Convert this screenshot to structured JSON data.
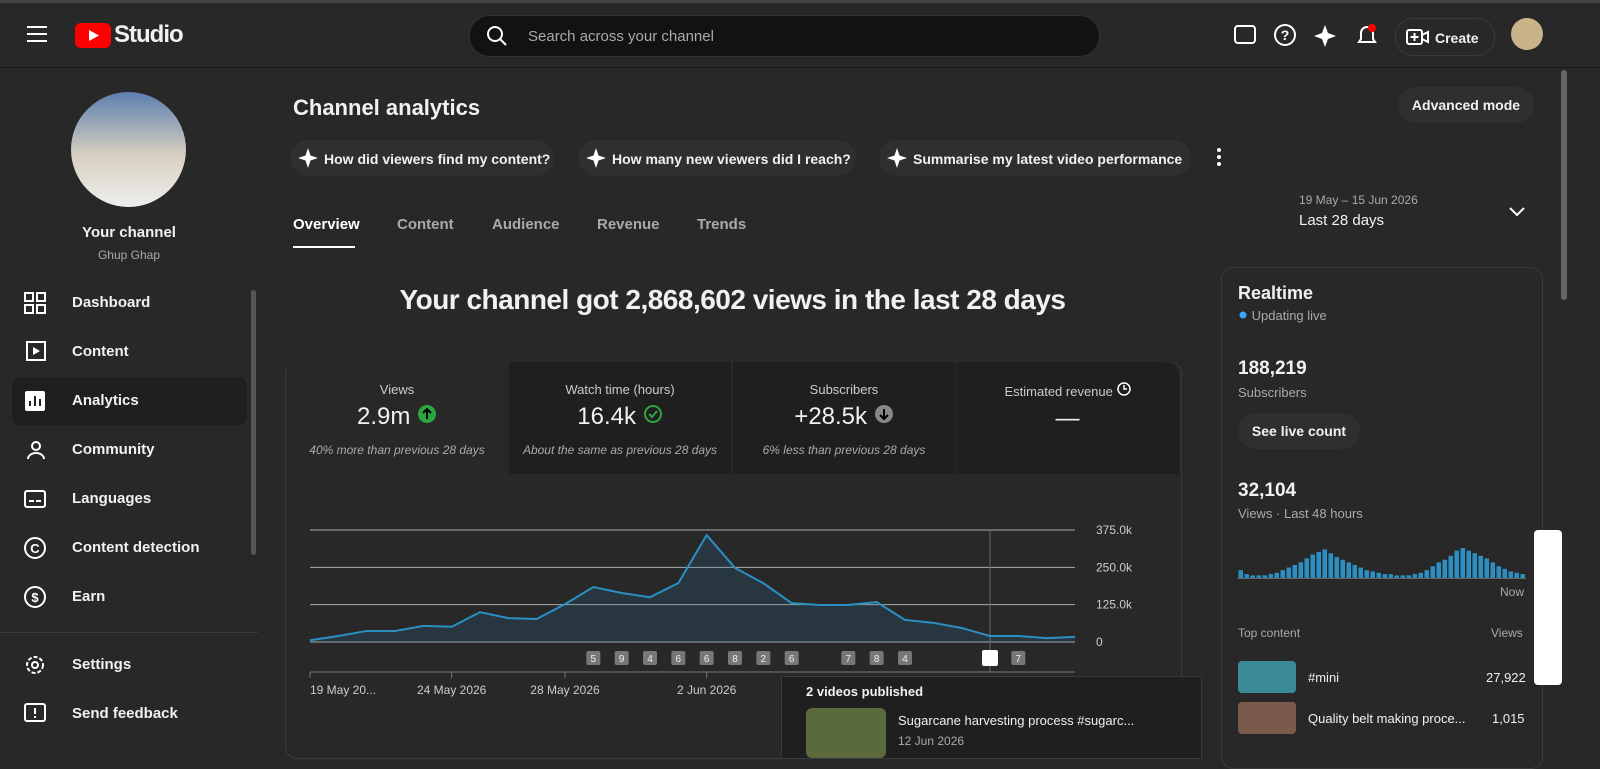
{
  "header": {
    "logo": "Studio",
    "search_placeholder": "Search across your channel",
    "create": "Create"
  },
  "sidebar": {
    "channel_title": "Your channel",
    "channel_name": "Ghup Ghap",
    "nav": [
      "Dashboard",
      "Content",
      "Analytics",
      "Community",
      "Languages",
      "Content detection",
      "Earn"
    ],
    "footer": [
      "Settings",
      "Send feedback"
    ]
  },
  "main": {
    "title": "Channel analytics",
    "advanced": "Advanced mode",
    "suggestions": [
      "How did viewers find my content?",
      "How many new viewers did I reach?",
      "Summarise my latest video performance"
    ],
    "tabs": [
      "Overview",
      "Content",
      "Audience",
      "Revenue",
      "Trends"
    ],
    "date_range": {
      "dates": "19 May – 15 Jun 2026",
      "label": "Last 28 days"
    },
    "headline": "Your channel got 2,868,602 views in the last 28 days",
    "metrics": [
      {
        "label": "Views",
        "value": "2.9m",
        "note": "40% more than previous 28 days"
      },
      {
        "label": "Watch time (hours)",
        "value": "16.4k",
        "note": "About the same as previous 28 days"
      },
      {
        "label": "Subscribers",
        "value": "+28.5k",
        "note": "6% less than previous 28 days"
      },
      {
        "label": "Estimated revenue",
        "value": "—"
      }
    ],
    "published": {
      "title": "2 videos published",
      "video_title": "Sugarcane harvesting process #sugarc...",
      "video_date": "12 Jun 2026"
    }
  },
  "chart_data": {
    "type": "line",
    "categories": [
      "19 May 20...",
      null,
      null,
      null,
      null,
      "24 May 2026",
      null,
      null,
      null,
      "28 May 2026",
      null,
      null,
      null,
      null,
      "2 Jun 2026",
      null,
      null,
      null,
      null,
      null,
      null,
      null,
      null,
      null,
      null,
      null,
      null,
      null
    ],
    "series": [
      {
        "name": "Views",
        "color": "#2b8fc4",
        "values": [
          6000,
          20000,
          37000,
          37000,
          54000,
          51000,
          100000,
          80000,
          77000,
          127000,
          184000,
          164000,
          150000,
          197000,
          358000,
          248000,
          197000,
          130000,
          124000,
          124000,
          134000,
          74000,
          64000,
          47000,
          20000,
          20000,
          13000,
          17000
        ]
      }
    ],
    "ylim": [
      0,
      375000
    ],
    "yticks": [
      {
        "value": 0,
        "label": "0"
      },
      {
        "value": 125000,
        "label": "125.0k"
      },
      {
        "value": 250000,
        "label": "250.0k"
      },
      {
        "value": 375000,
        "label": "375.0k"
      }
    ],
    "grid": true,
    "markers": [
      "5",
      "9",
      "4",
      "6",
      "6",
      "8",
      "2",
      "6",
      "7",
      "8",
      "4",
      "7"
    ]
  },
  "realtime": {
    "title": "Realtime",
    "status": "Updating live",
    "subscribers": "188,219",
    "subscribers_label": "Subscribers",
    "button": "See live count",
    "views": "32,104",
    "views_label": "Views · Last 48 hours",
    "now": "Now",
    "bars": [
      {
        "type": "bar",
        "color": "#2b8fc4",
        "values": [
          6,
          3,
          2,
          2,
          2,
          3,
          4,
          6,
          8,
          10,
          12,
          15,
          18,
          20,
          22,
          19,
          16,
          14,
          12,
          10,
          8,
          6,
          5,
          4,
          3,
          3,
          2,
          2,
          2,
          3,
          4,
          6,
          9,
          12,
          14,
          17,
          21,
          23,
          21,
          19,
          17,
          15,
          12,
          9,
          7,
          5,
          4,
          3
        ]
      }
    ],
    "top_content": "Top content",
    "views_header": "Views",
    "items": [
      {
        "title": "#mini",
        "views": "27,922"
      },
      {
        "title": "Quality belt making proce...",
        "views": "1,015"
      }
    ]
  }
}
